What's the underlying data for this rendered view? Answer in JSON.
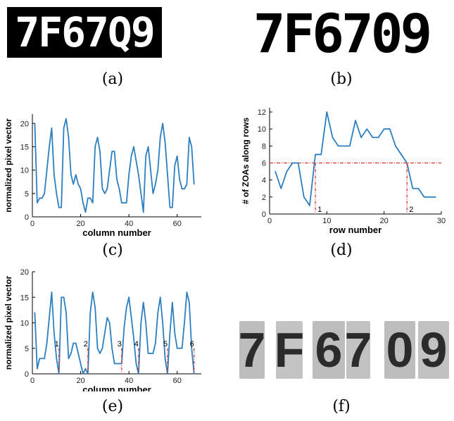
{
  "captions": {
    "a": "(a)",
    "b": "(b)",
    "c": "(c)",
    "d": "(d)",
    "e": "(e)",
    "f": "(f)"
  },
  "plate": {
    "text": "7F67Q9",
    "text_b": "7F6709"
  },
  "segments": {
    "chars": [
      "7",
      "F",
      "6",
      "7",
      "0",
      "9"
    ]
  },
  "chart_data": [
    {
      "id": "c",
      "type": "line",
      "xlabel": "column number",
      "ylabel": "normalized pixel vector",
      "xlim": [
        0,
        70
      ],
      "ylim": [
        0,
        22
      ],
      "xticks": [
        0,
        20,
        40,
        60
      ],
      "yticks": [
        0,
        5,
        10,
        15,
        20
      ],
      "color": "#2c7fc0",
      "x": [
        1,
        2,
        3,
        4,
        5,
        6,
        7,
        8,
        9,
        10,
        11,
        12,
        13,
        14,
        15,
        16,
        17,
        18,
        19,
        20,
        21,
        22,
        23,
        24,
        25,
        26,
        27,
        28,
        29,
        30,
        31,
        32,
        33,
        34,
        35,
        36,
        37,
        38,
        39,
        40,
        41,
        42,
        43,
        44,
        45,
        46,
        47,
        48,
        49,
        50,
        51,
        52,
        53,
        54,
        55,
        56,
        57,
        58,
        59,
        60,
        61,
        62,
        63,
        64,
        65,
        66,
        67
      ],
      "y": [
        20,
        3,
        4,
        4,
        5,
        10,
        15,
        19,
        9,
        5,
        2,
        2,
        19,
        21,
        17,
        9,
        7,
        9,
        7,
        6,
        3,
        1,
        4,
        4,
        3,
        15,
        17,
        14,
        6,
        5,
        6,
        10,
        14,
        14,
        8,
        6,
        3,
        3,
        3,
        9,
        13,
        15,
        12,
        9,
        5,
        1,
        13,
        15,
        10,
        5,
        7,
        10,
        17,
        20,
        16,
        9,
        2,
        2,
        11,
        13,
        8,
        6,
        6,
        7,
        17,
        15,
        7
      ]
    },
    {
      "id": "d",
      "type": "line",
      "xlabel": "row number",
      "ylabel": "# of ZOAs along rows",
      "xlim": [
        0,
        30
      ],
      "ylim": [
        0,
        12.5
      ],
      "xticks": [
        0,
        10,
        20,
        30
      ],
      "yticks": [
        0,
        2,
        4,
        6,
        8,
        10,
        12
      ],
      "color": "#2c7fc0",
      "x": [
        1,
        2,
        3,
        4,
        5,
        6,
        7,
        8,
        9,
        10,
        11,
        12,
        13,
        14,
        15,
        16,
        17,
        18,
        19,
        20,
        21,
        22,
        23,
        24,
        25,
        26,
        27,
        28,
        29
      ],
      "y": [
        5,
        3,
        5,
        6,
        6,
        2,
        1,
        7,
        7,
        12,
        9,
        8,
        8,
        8,
        11,
        9,
        10,
        9,
        9,
        10,
        10,
        8,
        7,
        6,
        3,
        3,
        2,
        2,
        2
      ],
      "threshold": 6,
      "markers": [
        {
          "x": 8,
          "label": "1"
        },
        {
          "x": 24,
          "label": "2"
        }
      ],
      "marker_color": "#e0302a"
    },
    {
      "id": "e",
      "type": "line",
      "xlabel": "column number",
      "ylabel": "normalized pixel vector",
      "xlim": [
        0,
        70
      ],
      "ylim": [
        0,
        20
      ],
      "xticks": [
        0,
        20,
        40,
        60
      ],
      "yticks": [
        0,
        5,
        10,
        15,
        20
      ],
      "color": "#2c7fc0",
      "x": [
        1,
        2,
        3,
        4,
        5,
        6,
        7,
        8,
        9,
        10,
        11,
        12,
        13,
        14,
        15,
        16,
        17,
        18,
        19,
        20,
        21,
        22,
        23,
        24,
        25,
        26,
        27,
        28,
        29,
        30,
        31,
        32,
        33,
        34,
        35,
        36,
        37,
        38,
        39,
        40,
        41,
        42,
        43,
        44,
        45,
        46,
        47,
        48,
        49,
        50,
        51,
        52,
        53,
        54,
        55,
        56,
        57,
        58,
        59,
        60,
        61,
        62,
        63,
        64,
        65,
        66,
        67
      ],
      "y": [
        12,
        1,
        3,
        3,
        3,
        6,
        11,
        16,
        8,
        3,
        0,
        15,
        15,
        12,
        3,
        4,
        6,
        6,
        4,
        2,
        0,
        1,
        0,
        12,
        16,
        13,
        5,
        4,
        5,
        8,
        11,
        10,
        5,
        2,
        2,
        2,
        2,
        9,
        13,
        15,
        11,
        7,
        2,
        0,
        10,
        14,
        10,
        4,
        4,
        4,
        6,
        12,
        15,
        10,
        3,
        0,
        8,
        14,
        8,
        5,
        5,
        5,
        10,
        16,
        14,
        5,
        0
      ],
      "markers": [
        {
          "x": 11,
          "label": "1"
        },
        {
          "x": 23,
          "label": "2"
        },
        {
          "x": 37,
          "label": "3"
        },
        {
          "x": 44,
          "label": "4"
        },
        {
          "x": 56,
          "label": "5"
        },
        {
          "x": 67,
          "label": "6"
        }
      ],
      "marker_color": "#e0302a"
    }
  ]
}
